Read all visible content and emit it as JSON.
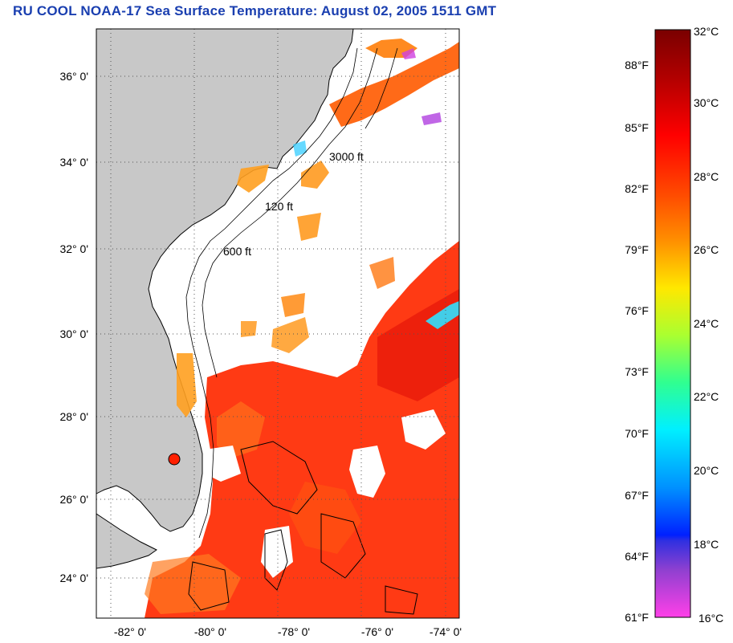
{
  "title": "RU COOL  NOAA-17  Sea Surface Temperature:  August 02, 2005 1511 GMT",
  "map": {
    "lat_labels": [
      "36° 0'",
      "34° 0'",
      "32° 0'",
      "30° 0'",
      "28° 0'",
      "26° 0'",
      "24° 0'"
    ],
    "lon_labels": [
      "-82° 0'",
      "-80° 0'",
      "-78° 0'",
      "-76° 0'",
      "-74° 0'"
    ],
    "contour_labels": [
      "120 ft",
      "600 ft",
      "3000 ft"
    ],
    "colors": {
      "land": "#c8c8c8",
      "cloud": "#ffffff",
      "coastline": "#000000"
    }
  },
  "colorbar": {
    "celsius_labels": [
      "32°C",
      "30°C",
      "28°C",
      "26°C",
      "24°C",
      "22°C",
      "20°C",
      "18°C",
      "16°C"
    ],
    "fahrenheit_labels": [
      "88°F",
      "85°F",
      "82°F",
      "79°F",
      "76°F",
      "73°F",
      "70°F",
      "67°F",
      "64°F",
      "61°F"
    ],
    "range_c": [
      16,
      32
    ],
    "range_f": [
      61,
      90
    ],
    "gradient_colors": [
      "#7a0000",
      "#cc0000",
      "#ff2a00",
      "#ff8c00",
      "#ffe800",
      "#80ff40",
      "#00ffd0",
      "#0080ff",
      "#0010ff",
      "#8040d0",
      "#ff40e0"
    ]
  }
}
